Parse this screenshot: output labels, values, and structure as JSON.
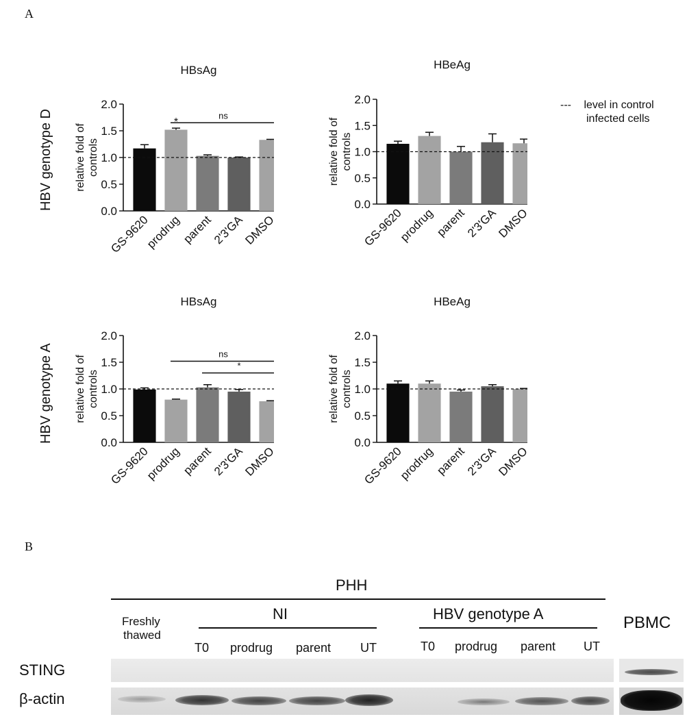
{
  "panels": {
    "a": "A",
    "b": "B"
  },
  "row_labels": {
    "top": "HBV genotype D",
    "bottom": "HBV genotype A"
  },
  "legend": {
    "dash": "---",
    "line1": "level in control",
    "line2": "infected cells"
  },
  "chart_data": [
    {
      "type": "bar",
      "title": "HBsAg",
      "ylabel": "relative fold of controls",
      "categories": [
        "GS-9620",
        "prodrug",
        "parent",
        "2'3'GA",
        "DMSO"
      ],
      "values": [
        1.17,
        1.52,
        1.03,
        1.0,
        1.33
      ],
      "errors": [
        0.07,
        0.03,
        0.02,
        0.01,
        0.01
      ],
      "colors": [
        "#0b0b0b",
        "#a3a3a3",
        "#7b7b7b",
        "#5f5f5f",
        "#a3a3a3"
      ],
      "ylim": [
        0,
        2.0
      ],
      "yticks": [
        "0.0",
        "0.5",
        "1.0",
        "1.5",
        "2.0"
      ],
      "reference_line": 1.0,
      "annotations": [
        {
          "type": "star",
          "bar": 1,
          "text": "*"
        },
        {
          "type": "bracket",
          "from": 1,
          "to": 4,
          "level": 1.65,
          "text": "ns"
        }
      ]
    },
    {
      "type": "bar",
      "title": "HBeAg",
      "ylabel": "relative fold of controls",
      "categories": [
        "GS-9620",
        "prodrug",
        "parent",
        "2'3'GA",
        "DMSO"
      ],
      "values": [
        1.15,
        1.3,
        1.0,
        1.18,
        1.16
      ],
      "errors": [
        0.05,
        0.07,
        0.1,
        0.16,
        0.08
      ],
      "colors": [
        "#0b0b0b",
        "#a3a3a3",
        "#7b7b7b",
        "#5f5f5f",
        "#a3a3a3"
      ],
      "ylim": [
        0,
        2.0
      ],
      "yticks": [
        "0.0",
        "0.5",
        "1.0",
        "1.5",
        "2.0"
      ],
      "reference_line": 1.0,
      "annotations": []
    },
    {
      "type": "bar",
      "title": "HBsAg",
      "ylabel": "relative fold of controls",
      "categories": [
        "GS-9620",
        "prodrug",
        "parent",
        "2'3'GA",
        "DMSO"
      ],
      "values": [
        0.99,
        0.8,
        1.03,
        0.95,
        0.77
      ],
      "errors": [
        0.03,
        0.01,
        0.05,
        0.04,
        0.01
      ],
      "colors": [
        "#0b0b0b",
        "#a3a3a3",
        "#7b7b7b",
        "#5f5f5f",
        "#a3a3a3"
      ],
      "ylim": [
        0,
        2.0
      ],
      "yticks": [
        "0.0",
        "0.5",
        "1.0",
        "1.5",
        "2.0"
      ],
      "reference_line": 1.0,
      "annotations": [
        {
          "type": "bracket",
          "from": 1,
          "to": 4,
          "level": 1.52,
          "text": "ns"
        },
        {
          "type": "bracket",
          "from": 2,
          "to": 4,
          "level": 1.3,
          "text": "*"
        }
      ]
    },
    {
      "type": "bar",
      "title": "HBeAg",
      "ylabel": "relative fold of controls",
      "categories": [
        "GS-9620",
        "prodrug",
        "parent",
        "2'3'GA",
        "DMSO"
      ],
      "values": [
        1.1,
        1.1,
        0.95,
        1.05,
        1.0
      ],
      "errors": [
        0.05,
        0.05,
        0.03,
        0.03,
        0.01
      ],
      "colors": [
        "#0b0b0b",
        "#a3a3a3",
        "#7b7b7b",
        "#5f5f5f",
        "#a3a3a3"
      ],
      "ylim": [
        0,
        2.0
      ],
      "yticks": [
        "0.0",
        "0.5",
        "1.0",
        "1.5",
        "2.0"
      ],
      "reference_line": 1.0,
      "annotations": []
    }
  ],
  "blot": {
    "phh": "PHH",
    "freshly": "Freshly",
    "thawed": "thawed",
    "ni": "NI",
    "hbv": "HBV genotype A",
    "pbmc": "PBMC",
    "lanes_ni": [
      "T0",
      "prodrug",
      "parent",
      "UT"
    ],
    "lanes_hbv": [
      "T0",
      "prodrug",
      "parent",
      "UT"
    ],
    "rows": [
      "STING",
      "β-actin"
    ]
  }
}
